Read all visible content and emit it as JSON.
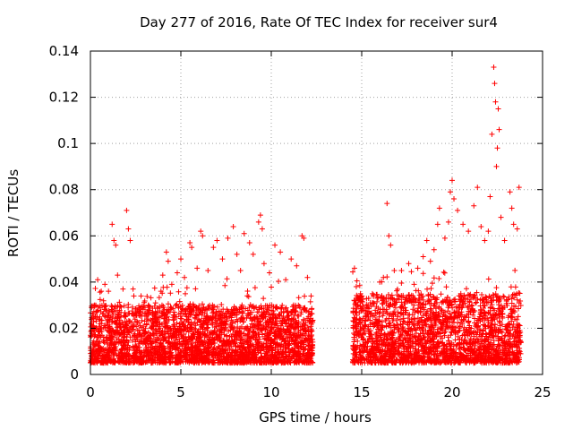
{
  "chart_data": {
    "type": "scatter",
    "title": "Day 277 of 2016, Rate Of TEC Index for receiver sur4",
    "xlabel": "GPS time / hours",
    "ylabel": "ROTI / TECUs",
    "xlim": [
      0,
      25
    ],
    "ylim": [
      0,
      0.14
    ],
    "x_ticks": [
      0,
      5,
      10,
      15,
      20,
      25
    ],
    "x_tick_labels": [
      "0",
      "5",
      "10",
      "15",
      "20",
      "25"
    ],
    "y_ticks": [
      0,
      0.02,
      0.04,
      0.06,
      0.08,
      0.1,
      0.12,
      0.14
    ],
    "y_tick_labels": [
      "0",
      "0.02",
      "0.04",
      "0.06",
      "0.08",
      "0.1",
      "0.12",
      "0.14"
    ],
    "grid": true,
    "marker": "+",
    "color": "#ff0000",
    "series": [
      {
        "name": "ROTI",
        "segments": [
          {
            "x_range": [
              0.0,
              12.3
            ],
            "typical": [
              0.005,
              0.03
            ]
          },
          {
            "x_range": [
              14.5,
              23.8
            ],
            "typical": [
              0.005,
              0.035
            ]
          }
        ],
        "points": [
          [
            0.3,
            0.027
          ],
          [
            0.4,
            0.041
          ],
          [
            0.6,
            0.036
          ],
          [
            0.8,
            0.039
          ],
          [
            1.0,
            0.036
          ],
          [
            1.2,
            0.065
          ],
          [
            1.3,
            0.058
          ],
          [
            1.4,
            0.056
          ],
          [
            1.5,
            0.043
          ],
          [
            1.8,
            0.037
          ],
          [
            2.0,
            0.071
          ],
          [
            2.1,
            0.063
          ],
          [
            2.2,
            0.058
          ],
          [
            2.4,
            0.034
          ],
          [
            2.8,
            0.034
          ],
          [
            3.2,
            0.03
          ],
          [
            3.6,
            0.031
          ],
          [
            3.9,
            0.036
          ],
          [
            4.0,
            0.043
          ],
          [
            4.2,
            0.053
          ],
          [
            4.3,
            0.049
          ],
          [
            4.5,
            0.039
          ],
          [
            4.8,
            0.044
          ],
          [
            5.0,
            0.05
          ],
          [
            5.2,
            0.042
          ],
          [
            5.5,
            0.057
          ],
          [
            5.6,
            0.055
          ],
          [
            5.9,
            0.046
          ],
          [
            6.1,
            0.062
          ],
          [
            6.2,
            0.06
          ],
          [
            6.5,
            0.045
          ],
          [
            6.8,
            0.055
          ],
          [
            7.0,
            0.058
          ],
          [
            7.3,
            0.05
          ],
          [
            7.6,
            0.059
          ],
          [
            7.9,
            0.064
          ],
          [
            8.1,
            0.052
          ],
          [
            8.3,
            0.045
          ],
          [
            8.5,
            0.061
          ],
          [
            8.8,
            0.057
          ],
          [
            9.0,
            0.052
          ],
          [
            9.3,
            0.066
          ],
          [
            9.4,
            0.069
          ],
          [
            9.5,
            0.063
          ],
          [
            9.6,
            0.048
          ],
          [
            9.9,
            0.044
          ],
          [
            10.2,
            0.056
          ],
          [
            10.5,
            0.053
          ],
          [
            10.8,
            0.041
          ],
          [
            11.1,
            0.05
          ],
          [
            11.4,
            0.047
          ],
          [
            11.7,
            0.06
          ],
          [
            11.8,
            0.059
          ],
          [
            12.0,
            0.042
          ],
          [
            12.2,
            0.034
          ],
          [
            14.6,
            0.046
          ],
          [
            14.7,
            0.038
          ],
          [
            14.9,
            0.032
          ],
          [
            15.3,
            0.029
          ],
          [
            15.6,
            0.031
          ],
          [
            16.0,
            0.04
          ],
          [
            16.2,
            0.042
          ],
          [
            16.4,
            0.074
          ],
          [
            16.5,
            0.06
          ],
          [
            16.6,
            0.056
          ],
          [
            16.8,
            0.045
          ],
          [
            17.2,
            0.045
          ],
          [
            17.6,
            0.048
          ],
          [
            17.9,
            0.039
          ],
          [
            18.1,
            0.046
          ],
          [
            18.4,
            0.051
          ],
          [
            18.6,
            0.058
          ],
          [
            18.8,
            0.049
          ],
          [
            19.0,
            0.054
          ],
          [
            19.2,
            0.065
          ],
          [
            19.3,
            0.072
          ],
          [
            19.6,
            0.059
          ],
          [
            19.8,
            0.066
          ],
          [
            19.9,
            0.079
          ],
          [
            20.0,
            0.084
          ],
          [
            20.1,
            0.076
          ],
          [
            20.3,
            0.071
          ],
          [
            20.6,
            0.065
          ],
          [
            20.9,
            0.062
          ],
          [
            21.2,
            0.073
          ],
          [
            21.4,
            0.081
          ],
          [
            21.6,
            0.064
          ],
          [
            21.8,
            0.058
          ],
          [
            22.0,
            0.062
          ],
          [
            22.1,
            0.077
          ],
          [
            22.2,
            0.104
          ],
          [
            22.3,
            0.133
          ],
          [
            22.35,
            0.126
          ],
          [
            22.4,
            0.118
          ],
          [
            22.45,
            0.09
          ],
          [
            22.5,
            0.098
          ],
          [
            22.55,
            0.115
          ],
          [
            22.6,
            0.106
          ],
          [
            22.7,
            0.068
          ],
          [
            22.9,
            0.058
          ],
          [
            23.2,
            0.079
          ],
          [
            23.3,
            0.072
          ],
          [
            23.4,
            0.065
          ],
          [
            23.6,
            0.063
          ],
          [
            23.7,
            0.081
          ]
        ]
      }
    ]
  }
}
